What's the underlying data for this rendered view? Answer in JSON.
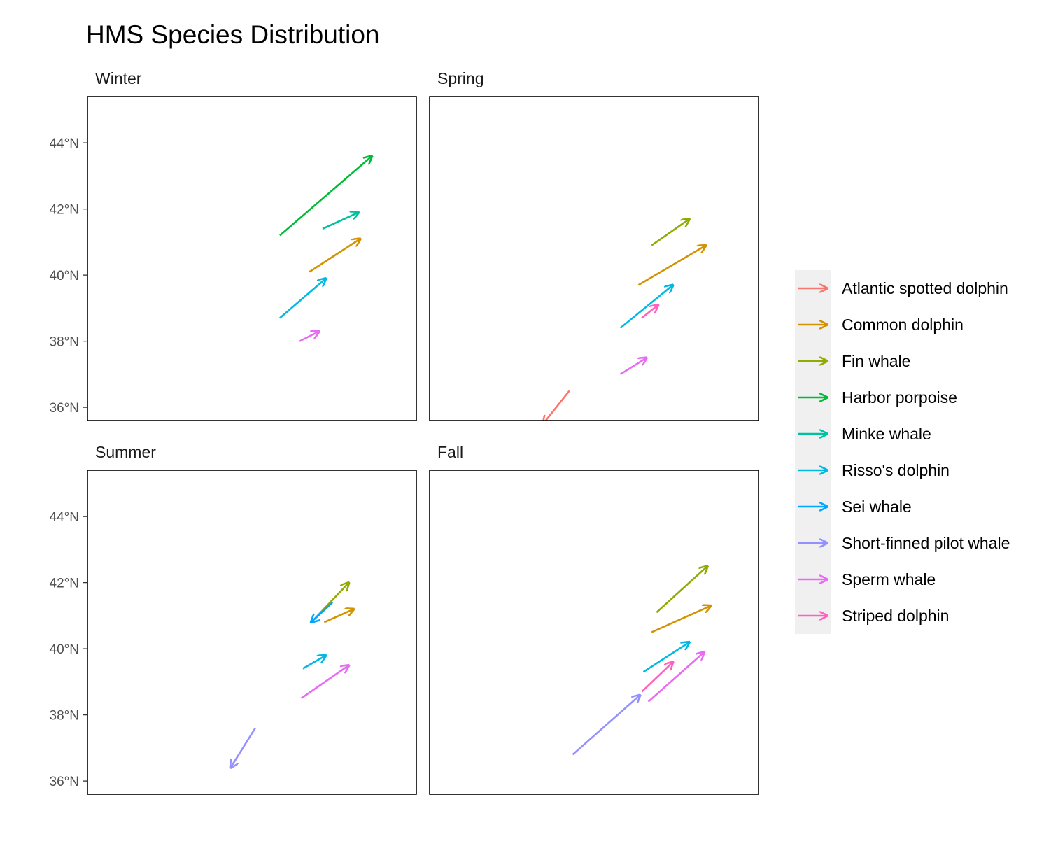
{
  "chart_data": {
    "type": "arrow-facet",
    "title": "HMS Species Distribution",
    "ylim": [
      35.6,
      45.4
    ],
    "xlim": [
      -82.0,
      -62.0
    ],
    "y_ticks": [
      44,
      42,
      40,
      38,
      36
    ],
    "y_tick_labels": [
      "44°N",
      "42°N",
      "40°N",
      "38°N",
      "36°N"
    ],
    "grid": false,
    "legend_position": "right",
    "species": [
      {
        "name": "Atlantic spotted dolphin",
        "color": "#F8766D"
      },
      {
        "name": "Common dolphin",
        "color": "#D39200"
      },
      {
        "name": "Fin whale",
        "color": "#93AA00"
      },
      {
        "name": "Harbor porpoise",
        "color": "#00BA38"
      },
      {
        "name": "Minke whale",
        "color": "#00C19F"
      },
      {
        "name": "Risso's dolphin",
        "color": "#00B9E3"
      },
      {
        "name": "Sei whale",
        "color": "#00A5FF"
      },
      {
        "name": "Short-finned pilot whale",
        "color": "#9590FF"
      },
      {
        "name": "Sperm whale",
        "color": "#E76BF3"
      },
      {
        "name": "Striped dolphin",
        "color": "#FF62BC"
      }
    ],
    "panels": [
      {
        "label": "Winter",
        "arrows": [
          {
            "species": "Harbor porpoise",
            "x0": -70.3,
            "y0": 41.2,
            "x1": -64.7,
            "y1": 43.6
          },
          {
            "species": "Minke whale",
            "x0": -67.7,
            "y0": 41.4,
            "x1": -65.5,
            "y1": 41.9
          },
          {
            "species": "Common dolphin",
            "x0": -68.5,
            "y0": 40.1,
            "x1": -65.4,
            "y1": 41.1
          },
          {
            "species": "Risso's dolphin",
            "x0": -70.3,
            "y0": 38.7,
            "x1": -67.5,
            "y1": 39.9
          },
          {
            "species": "Sperm whale",
            "x0": -69.1,
            "y0": 38.0,
            "x1": -67.9,
            "y1": 38.3
          }
        ]
      },
      {
        "label": "Spring",
        "arrows": [
          {
            "species": "Fin whale",
            "x0": -68.5,
            "y0": 40.9,
            "x1": -66.2,
            "y1": 41.7
          },
          {
            "species": "Common dolphin",
            "x0": -69.3,
            "y0": 39.7,
            "x1": -65.2,
            "y1": 40.9
          },
          {
            "species": "Risso's dolphin",
            "x0": -70.4,
            "y0": 38.4,
            "x1": -67.2,
            "y1": 39.7
          },
          {
            "species": "Striped dolphin",
            "x0": -69.1,
            "y0": 38.7,
            "x1": -68.1,
            "y1": 39.1
          },
          {
            "species": "Sperm whale",
            "x0": -70.4,
            "y0": 37.0,
            "x1": -68.8,
            "y1": 37.5
          },
          {
            "species": "Atlantic spotted dolphin",
            "x0": -73.5,
            "y0": 36.5,
            "x1": -75.1,
            "y1": 35.5
          }
        ]
      },
      {
        "label": "Summer",
        "arrows": [
          {
            "species": "Fin whale",
            "x0": -68.2,
            "y0": 40.9,
            "x1": -66.1,
            "y1": 42.0
          },
          {
            "species": "Sei whale",
            "x0": -67.1,
            "y0": 41.4,
            "x1": -68.4,
            "y1": 40.8
          },
          {
            "species": "Common dolphin",
            "x0": -67.6,
            "y0": 40.8,
            "x1": -65.8,
            "y1": 41.2
          },
          {
            "species": "Risso's dolphin",
            "x0": -68.9,
            "y0": 39.4,
            "x1": -67.5,
            "y1": 39.8
          },
          {
            "species": "Sperm whale",
            "x0": -69.0,
            "y0": 38.5,
            "x1": -66.1,
            "y1": 39.5
          },
          {
            "species": "Short-finned pilot whale",
            "x0": -71.8,
            "y0": 37.6,
            "x1": -73.3,
            "y1": 36.4
          }
        ]
      },
      {
        "label": "Fall",
        "arrows": [
          {
            "species": "Fin whale",
            "x0": -68.2,
            "y0": 41.1,
            "x1": -65.1,
            "y1": 42.5
          },
          {
            "species": "Common dolphin",
            "x0": -68.5,
            "y0": 40.5,
            "x1": -64.9,
            "y1": 41.3
          },
          {
            "species": "Risso's dolphin",
            "x0": -69.0,
            "y0": 39.3,
            "x1": -66.2,
            "y1": 40.2
          },
          {
            "species": "Sperm whale",
            "x0": -68.7,
            "y0": 38.4,
            "x1": -65.3,
            "y1": 39.9
          },
          {
            "species": "Striped dolphin",
            "x0": -69.1,
            "y0": 38.7,
            "x1": -67.2,
            "y1": 39.6
          },
          {
            "species": "Short-finned pilot whale",
            "x0": -73.3,
            "y0": 36.8,
            "x1": -69.2,
            "y1": 38.6
          }
        ]
      }
    ]
  }
}
